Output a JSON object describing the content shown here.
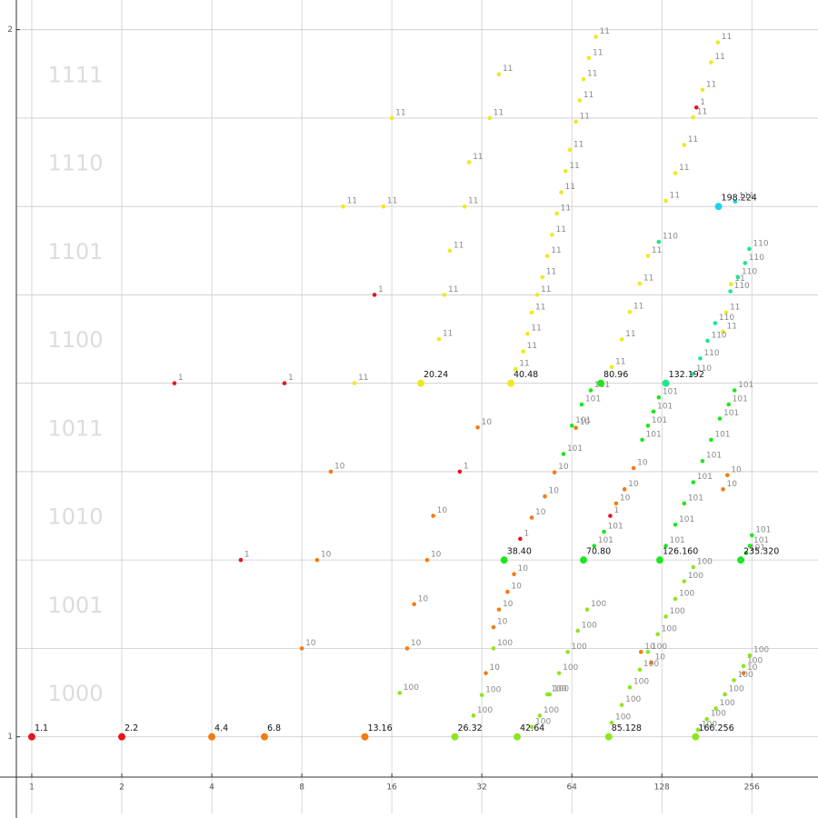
{
  "chart_data": {
    "type": "scatter",
    "xscale": "log2",
    "xlim": [
      0.888,
      426
    ],
    "ylim": [
      0.943,
      2.042
    ],
    "xticks": [
      1,
      2,
      4,
      8,
      16,
      32,
      64,
      128,
      256
    ],
    "yticks": [
      1,
      2
    ],
    "ygrid": [
      1,
      1.125,
      1.25,
      1.375,
      1.5,
      1.625,
      1.75,
      1.875,
      2
    ],
    "grid": true,
    "band_labels": [
      "1000",
      "1001",
      "1010",
      "1011",
      "1100",
      "1101",
      "1110",
      "1111"
    ],
    "series": [
      {
        "label": "1",
        "color": "#e8141c",
        "x": [
          3,
          7,
          5,
          14,
          27,
          43,
          86,
          167
        ],
        "y": [
          1.5,
          1.5,
          1.25,
          1.625,
          1.375,
          1.28,
          1.3125,
          1.89
        ]
      },
      {
        "label": "10",
        "color": "#f57a14",
        "x": [
          10,
          9,
          8,
          18,
          19,
          21,
          22,
          31,
          33,
          35,
          36.5,
          39,
          41,
          47,
          52,
          56,
          66,
          90,
          96,
          103,
          109,
          118,
          205,
          212,
          240
        ],
        "y": [
          1.375,
          1.25,
          1.125,
          1.125,
          1.1875,
          1.25,
          1.3125,
          1.4375,
          1.09,
          1.155,
          1.18,
          1.205,
          1.23,
          1.31,
          1.34,
          1.374,
          1.437,
          1.33,
          1.35,
          1.38,
          1.12,
          1.105,
          1.35,
          1.37,
          1.09
        ]
      },
      {
        "label": "11",
        "color": "#f0e81e",
        "x": [
          11,
          12,
          15,
          16,
          23,
          24,
          25,
          28,
          29,
          34,
          36.5,
          41.5,
          44,
          45.5,
          47,
          49,
          51,
          53,
          55,
          57,
          59,
          61,
          63,
          66,
          68,
          70,
          73,
          77,
          87,
          94,
          100,
          108,
          115,
          132,
          142,
          152,
          163,
          175,
          187,
          197,
          205,
          210,
          218
        ],
        "y": [
          1.75,
          1.5,
          1.75,
          1.875,
          1.5625,
          1.625,
          1.6875,
          1.75,
          1.8125,
          1.875,
          1.937,
          1.52,
          1.545,
          1.57,
          1.6,
          1.625,
          1.65,
          1.68,
          1.71,
          1.74,
          1.77,
          1.8,
          1.83,
          1.87,
          1.9,
          1.93,
          1.96,
          1.99,
          1.523,
          1.562,
          1.601,
          1.641,
          1.68,
          1.758,
          1.797,
          1.837,
          1.876,
          1.915,
          1.954,
          1.982,
          1.573,
          1.6,
          1.64
        ]
      },
      {
        "label": "100",
        "color": "#8ce61e",
        "x": [
          17,
          30,
          32,
          35,
          47,
          53,
          50,
          54,
          58,
          62,
          67,
          72,
          87,
          94,
          100,
          108,
          115,
          124,
          132,
          142,
          152,
          163,
          169,
          181,
          194,
          208,
          223,
          240,
          252
        ],
        "y": [
          1.062,
          1.03,
          1.059,
          1.125,
          1.014,
          1.06,
          1.03,
          1.06,
          1.09,
          1.12,
          1.15,
          1.18,
          1.02,
          1.045,
          1.07,
          1.095,
          1.12,
          1.145,
          1.17,
          1.195,
          1.22,
          1.24,
          1.01,
          1.025,
          1.04,
          1.06,
          1.08,
          1.1,
          1.115
        ]
      },
      {
        "label": "101",
        "color": "#1ee61e",
        "x": [
          60,
          64,
          69,
          74,
          76,
          82,
          110,
          115,
          120,
          125,
          132,
          142,
          152,
          163,
          175,
          187,
          200,
          214,
          224,
          245,
          252,
          256
        ],
        "y": [
          1.4,
          1.44,
          1.47,
          1.49,
          1.27,
          1.29,
          1.42,
          1.44,
          1.46,
          1.48,
          1.27,
          1.3,
          1.33,
          1.36,
          1.39,
          1.42,
          1.45,
          1.47,
          1.49,
          1.26,
          1.27,
          1.285
        ]
      },
      {
        "label": "110",
        "color": "#1ee68c",
        "x": [
          125,
          162,
          172,
          182,
          193,
          217,
          230,
          243,
          251
        ],
        "y": [
          1.7,
          1.513,
          1.535,
          1.56,
          1.585,
          1.63,
          1.65,
          1.67,
          1.69
        ]
      },
      {
        "label": "111",
        "color": "#1ed2f0",
        "x": [
          225
        ],
        "y": [
          1.757
        ]
      }
    ],
    "highlights": {
      "labels": [
        "1.1",
        "2.2",
        "4.4",
        "6.8",
        "13.16",
        "26.32",
        "42.64",
        "85.128",
        "166.256",
        "20.24",
        "40.48",
        "80.96",
        "132.192",
        "38.40",
        "70.80",
        "126.160",
        "235.320",
        "198.224"
      ],
      "x": [
        1,
        2,
        4,
        6,
        13,
        26,
        42,
        85,
        166,
        20,
        40,
        80,
        132,
        38,
        70,
        126,
        235,
        198
      ],
      "y": [
        1,
        1,
        1,
        1,
        1,
        1,
        1,
        1,
        1,
        1.5,
        1.5,
        1.5,
        1.5,
        1.25,
        1.25,
        1.25,
        1.25,
        1.75
      ],
      "colors": [
        "#e8141c",
        "#e8141c",
        "#f57a14",
        "#f57a14",
        "#f57a14",
        "#8ce61e",
        "#8ce61e",
        "#8ce61e",
        "#8ce61e",
        "#f0e81e",
        "#f0e81e",
        "#1ee61e",
        "#1ee68c",
        "#1ee61e",
        "#1ee61e",
        "#1ee61e",
        "#1ee61e",
        "#1ed2f0"
      ]
    }
  }
}
